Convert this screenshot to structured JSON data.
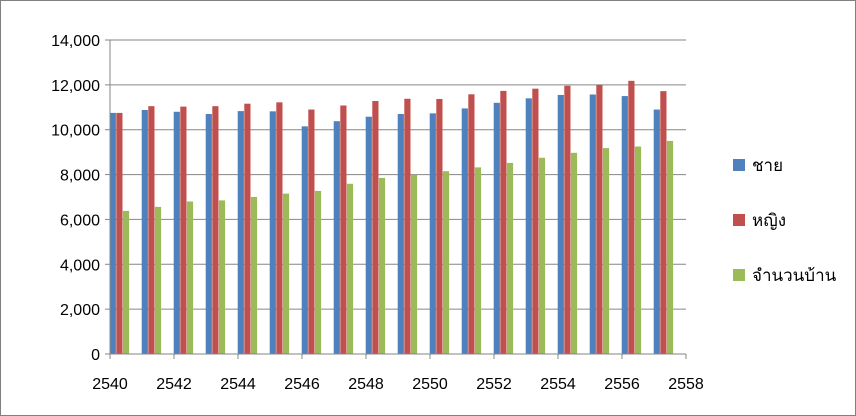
{
  "chart_data": {
    "type": "bar",
    "title": "",
    "xlabel": "",
    "ylabel": "",
    "x": [
      2540,
      2541,
      2542,
      2543,
      2544,
      2545,
      2546,
      2547,
      2548,
      2549,
      2550,
      2551,
      2552,
      2553,
      2554,
      2555,
      2556,
      2557
    ],
    "series": [
      {
        "name": "ชาย",
        "color": "#4F81BD",
        "values": [
          10750,
          10880,
          10800,
          10700,
          10830,
          10820,
          10150,
          10380,
          10580,
          10700,
          10730,
          10950,
          11200,
          11400,
          11550,
          11570,
          11500,
          10900
        ]
      },
      {
        "name": "หญิง",
        "color": "#C0504D",
        "values": [
          10750,
          11050,
          11030,
          11050,
          11160,
          11220,
          10900,
          11080,
          11280,
          11380,
          11370,
          11580,
          11730,
          11830,
          11960,
          12000,
          12180,
          11720
        ]
      },
      {
        "name": "จำนวนบ้าน",
        "color": "#9BBB59",
        "values": [
          6380,
          6560,
          6800,
          6850,
          7000,
          7150,
          7270,
          7590,
          7850,
          7990,
          8150,
          8320,
          8520,
          8750,
          8970,
          9180,
          9250,
          9500
        ]
      }
    ],
    "ylim": [
      0,
      14000
    ],
    "yticks": [
      "0",
      "2,000",
      "4,000",
      "6,000",
      "8,000",
      "10,000",
      "12,000",
      "14,000"
    ],
    "xlim": [
      2540,
      2558
    ],
    "xticks": [
      "2540",
      "2542",
      "2544",
      "2546",
      "2548",
      "2550",
      "2552",
      "2554",
      "2556",
      "2558"
    ],
    "grid": "horizontal",
    "legend_position": "right"
  },
  "legend": [
    {
      "label": "ชาย",
      "color": "#4F81BD"
    },
    {
      "label": "หญิง",
      "color": "#C0504D"
    },
    {
      "label": "จำนวนบ้าน",
      "color": "#9BBB59"
    }
  ]
}
